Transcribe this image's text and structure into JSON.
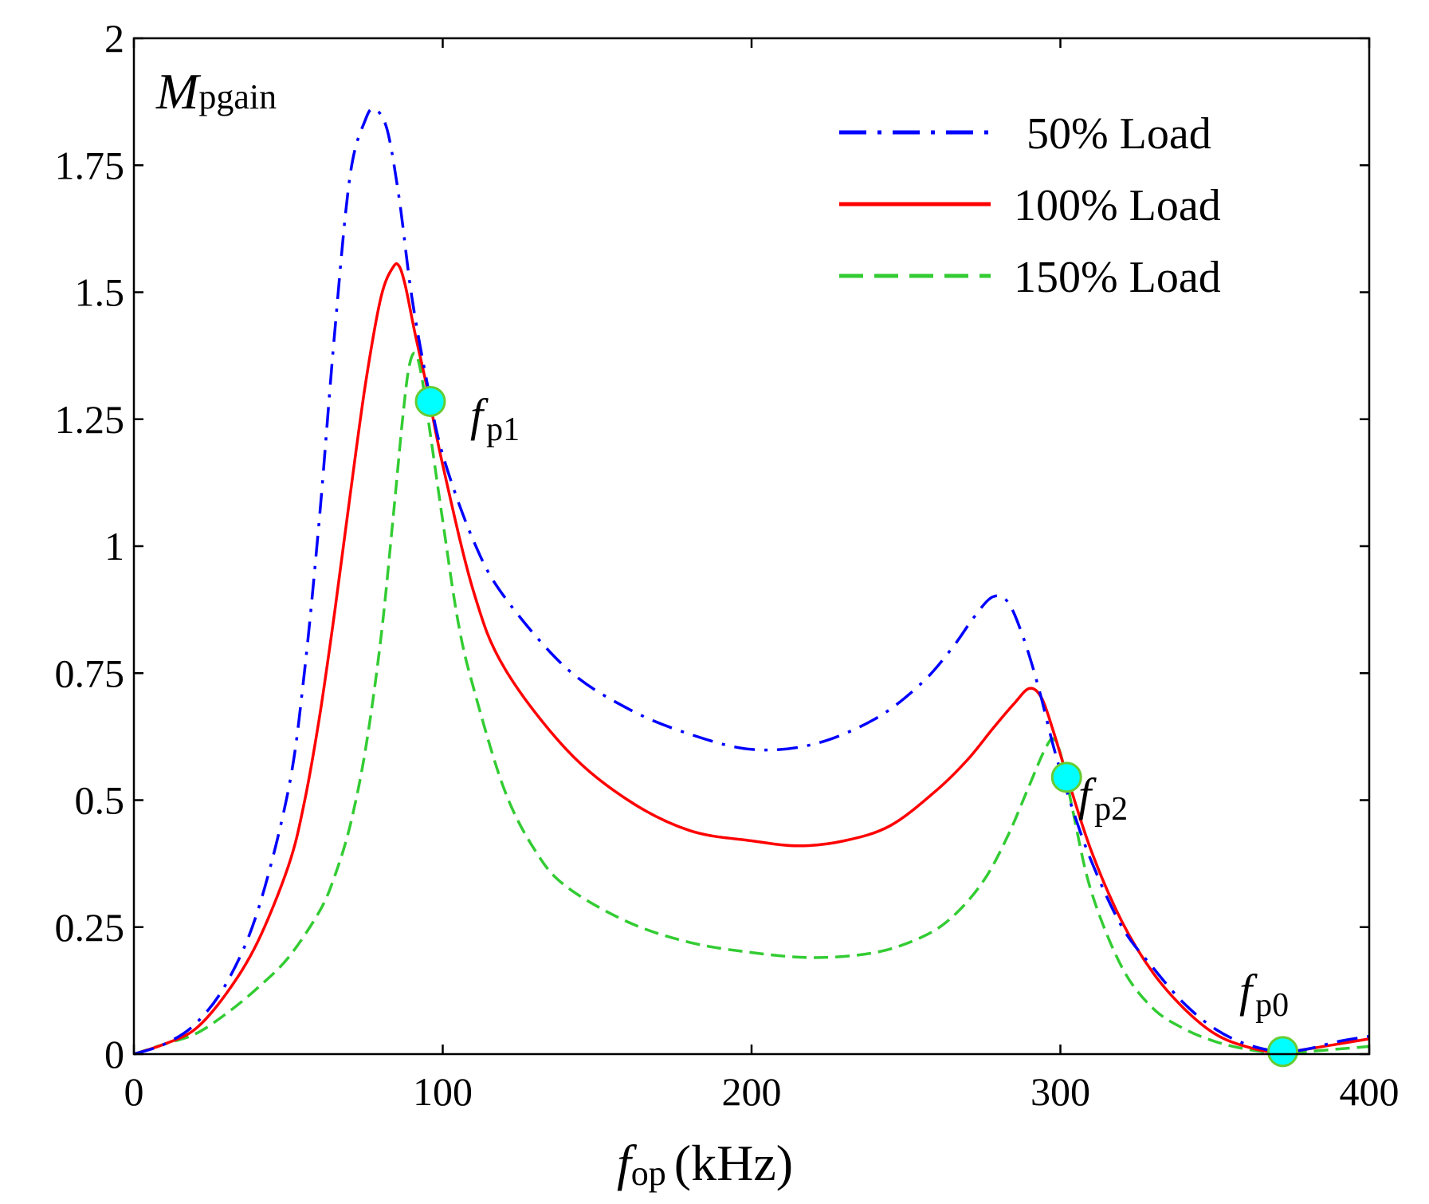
{
  "chart_data": {
    "type": "line",
    "title": "",
    "ylabel": {
      "symbol": "M",
      "subscript": "pgain"
    },
    "xlabel": {
      "symbol": "f",
      "subscript": "op",
      "unit": "(kHz)"
    },
    "xlim": [
      0,
      400
    ],
    "ylim": [
      0,
      2
    ],
    "x_ticks": [
      0,
      100,
      200,
      300,
      400
    ],
    "y_ticks": [
      0,
      0.25,
      0.5,
      0.75,
      1,
      1.25,
      1.5,
      1.75,
      2
    ],
    "x_tick_labels": [
      "0",
      "100",
      "200",
      "300",
      "400"
    ],
    "y_tick_labels": [
      "0",
      "0.25",
      "0.5",
      "0.75",
      "1",
      "1.25",
      "1.5",
      "1.75",
      "2"
    ],
    "grid": false,
    "legend_position": "top-right",
    "series": [
      {
        "name": "50% Load",
        "color": "#0000ff",
        "style": "dashdot",
        "x": [
          0,
          10,
          20,
          30,
          40,
          50,
          55,
          60,
          65,
          70,
          75,
          78,
          82,
          86,
          90,
          95,
          100,
          110,
          120,
          140,
          160,
          180,
          200,
          220,
          240,
          255,
          265,
          272,
          278,
          283,
          288,
          293,
          298,
          303,
          310,
          320,
          330,
          340,
          350,
          360,
          371,
          380,
          390,
          400
        ],
        "y": [
          0,
          0.02,
          0.06,
          0.14,
          0.28,
          0.52,
          0.74,
          1.05,
          1.42,
          1.73,
          1.84,
          1.86,
          1.82,
          1.68,
          1.49,
          1.32,
          1.18,
          1.01,
          0.9,
          0.76,
          0.68,
          0.63,
          0.6,
          0.61,
          0.66,
          0.73,
          0.8,
          0.86,
          0.9,
          0.89,
          0.82,
          0.72,
          0.6,
          0.5,
          0.38,
          0.25,
          0.17,
          0.1,
          0.05,
          0.02,
          0.005,
          0.01,
          0.025,
          0.035
        ]
      },
      {
        "name": "100% Load",
        "color": "#ff0000",
        "style": "solid",
        "x": [
          0,
          10,
          20,
          30,
          40,
          50,
          55,
          60,
          65,
          70,
          75,
          80,
          84,
          86,
          88,
          91,
          95,
          100,
          110,
          120,
          140,
          160,
          180,
          200,
          215,
          230,
          245,
          260,
          270,
          278,
          285,
          290,
          294,
          298,
          302,
          310,
          320,
          330,
          340,
          350,
          360,
          371,
          380,
          390,
          400
        ],
        "y": [
          0,
          0.02,
          0.05,
          0.12,
          0.22,
          0.37,
          0.49,
          0.66,
          0.87,
          1.1,
          1.32,
          1.49,
          1.55,
          1.55,
          1.51,
          1.42,
          1.31,
          1.16,
          0.91,
          0.76,
          0.6,
          0.5,
          0.44,
          0.42,
          0.41,
          0.42,
          0.45,
          0.52,
          0.58,
          0.64,
          0.69,
          0.72,
          0.7,
          0.63,
          0.55,
          0.4,
          0.26,
          0.16,
          0.09,
          0.04,
          0.015,
          0.003,
          0.01,
          0.02,
          0.03
        ]
      },
      {
        "name": "150% Load",
        "color": "#33cc33",
        "style": "dashed",
        "x": [
          0,
          10,
          20,
          30,
          40,
          50,
          60,
          65,
          70,
          75,
          80,
          84,
          87,
          89,
          91,
          93,
          96,
          100,
          105,
          110,
          120,
          130,
          140,
          160,
          180,
          200,
          220,
          240,
          255,
          265,
          275,
          283,
          290,
          295,
          298,
          301,
          304,
          310,
          320,
          330,
          340,
          350,
          360,
          371,
          380,
          390,
          400
        ],
        "y": [
          0,
          0.02,
          0.04,
          0.08,
          0.13,
          0.19,
          0.28,
          0.35,
          0.45,
          0.6,
          0.82,
          1.06,
          1.25,
          1.35,
          1.38,
          1.34,
          1.22,
          1.05,
          0.85,
          0.72,
          0.52,
          0.4,
          0.33,
          0.26,
          0.22,
          0.2,
          0.19,
          0.2,
          0.23,
          0.27,
          0.34,
          0.43,
          0.53,
          0.6,
          0.62,
          0.57,
          0.48,
          0.32,
          0.17,
          0.09,
          0.05,
          0.025,
          0.01,
          0.002,
          0.005,
          0.01,
          0.015
        ]
      }
    ],
    "points": [
      {
        "name": "f_p1",
        "x": 96,
        "y": 1.285,
        "symbol": "f",
        "subscript": "p1"
      },
      {
        "name": "f_p2",
        "x": 302,
        "y": 0.545,
        "symbol": "f",
        "subscript": "p2"
      },
      {
        "name": "f_p0",
        "x": 372,
        "y": 0.005,
        "symbol": "f",
        "subscript": "p0"
      }
    ],
    "point_color": "#00ffff",
    "point_edge_color": "#66cc33"
  }
}
